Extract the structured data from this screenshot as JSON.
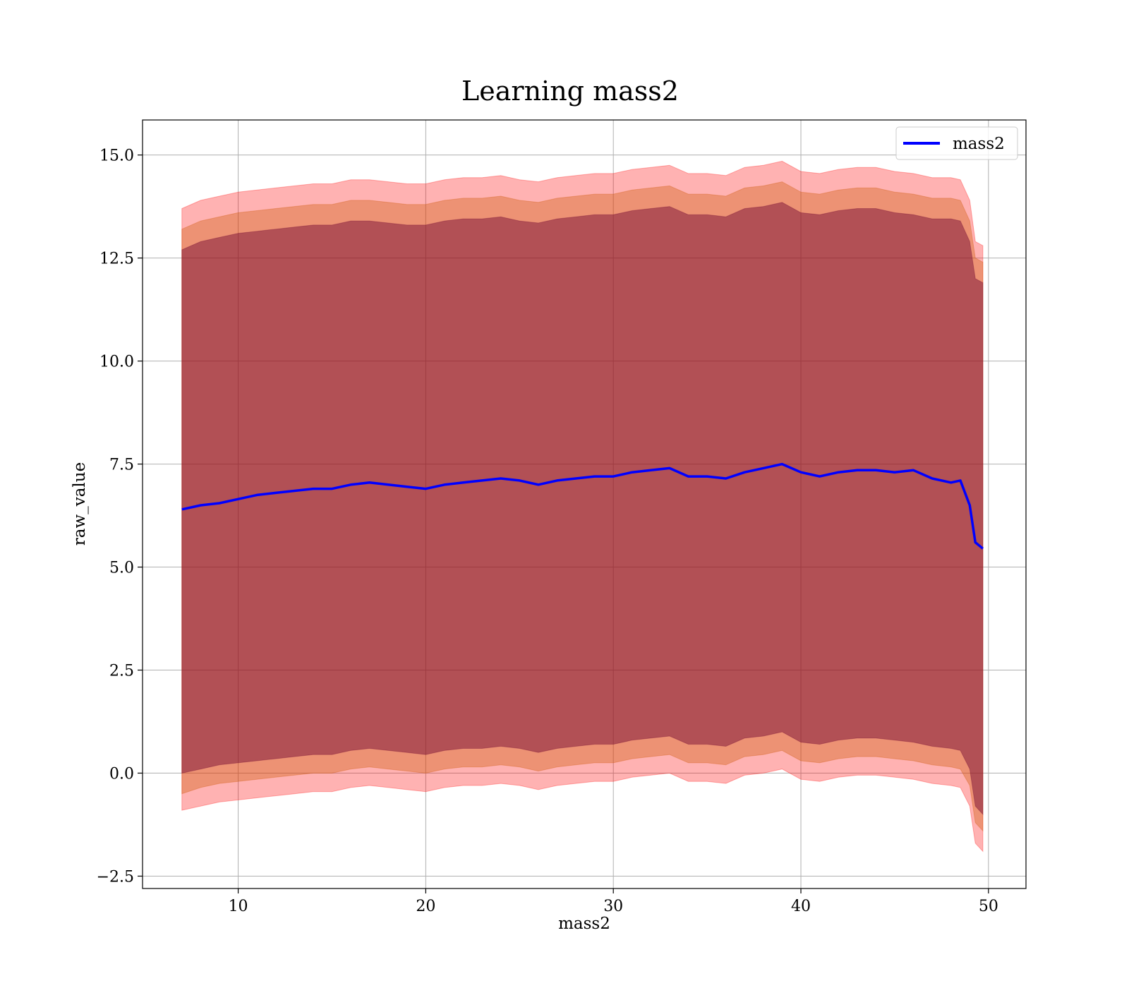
{
  "chart_data": {
    "type": "line",
    "title": "Learning mass2",
    "xlabel": "mass2",
    "ylabel": "raw_value",
    "xlim": [
      4.9,
      52.0
    ],
    "ylim": [
      -2.8,
      15.85
    ],
    "xticks": [
      10,
      20,
      30,
      40,
      50
    ],
    "xtick_labels": [
      "10",
      "20",
      "30",
      "40",
      "50"
    ],
    "yticks": [
      -2.5,
      0.0,
      2.5,
      5.0,
      7.5,
      10.0,
      12.5,
      15.0
    ],
    "ytick_labels": [
      "−2.5",
      "0.0",
      "2.5",
      "5.0",
      "7.5",
      "10.0",
      "12.5",
      "15.0"
    ],
    "grid": true,
    "legend_position": "top-right",
    "legend": [
      "mass2"
    ],
    "colors": {
      "line": "#0000ff",
      "band_outer": "#ff0000",
      "band_middle": "#cc5500",
      "band_inner": "#6a0030",
      "grid": "#b0b0b0"
    },
    "series": [
      {
        "name": "mass2",
        "x": [
          7.0,
          8.0,
          9.0,
          10.0,
          11.0,
          12.0,
          13.0,
          14.0,
          15.0,
          16.0,
          17.0,
          18.0,
          19.0,
          20.0,
          21.0,
          22.0,
          23.0,
          24.0,
          25.0,
          26.0,
          27.0,
          28.0,
          29.0,
          30.0,
          31.0,
          32.0,
          33.0,
          34.0,
          35.0,
          36.0,
          37.0,
          38.0,
          39.0,
          40.0,
          41.0,
          42.0,
          43.0,
          44.0,
          45.0,
          46.0,
          47.0,
          48.0,
          48.5,
          49.0,
          49.3,
          49.7
        ],
        "y": [
          6.4,
          6.5,
          6.55,
          6.65,
          6.75,
          6.8,
          6.85,
          6.9,
          6.9,
          7.0,
          7.05,
          7.0,
          6.95,
          6.9,
          7.0,
          7.05,
          7.1,
          7.15,
          7.1,
          7.0,
          7.1,
          7.15,
          7.2,
          7.2,
          7.3,
          7.35,
          7.4,
          7.2,
          7.2,
          7.15,
          7.3,
          7.4,
          7.5,
          7.3,
          7.2,
          7.3,
          7.35,
          7.35,
          7.3,
          7.35,
          7.15,
          7.05,
          7.1,
          6.5,
          5.6,
          5.45
        ],
        "band_outer_upper": [
          13.7,
          13.9,
          14.0,
          14.1,
          14.15,
          14.2,
          14.25,
          14.3,
          14.3,
          14.4,
          14.4,
          14.35,
          14.3,
          14.3,
          14.4,
          14.45,
          14.45,
          14.5,
          14.4,
          14.35,
          14.45,
          14.5,
          14.55,
          14.55,
          14.65,
          14.7,
          14.75,
          14.55,
          14.55,
          14.5,
          14.7,
          14.75,
          14.85,
          14.6,
          14.55,
          14.65,
          14.7,
          14.7,
          14.6,
          14.55,
          14.45,
          14.45,
          14.4,
          13.9,
          12.9,
          12.8
        ],
        "band_outer_lower": [
          -0.9,
          -0.8,
          -0.7,
          -0.65,
          -0.6,
          -0.55,
          -0.5,
          -0.45,
          -0.45,
          -0.35,
          -0.3,
          -0.35,
          -0.4,
          -0.45,
          -0.35,
          -0.3,
          -0.3,
          -0.25,
          -0.3,
          -0.4,
          -0.3,
          -0.25,
          -0.2,
          -0.2,
          -0.1,
          -0.05,
          0.0,
          -0.2,
          -0.2,
          -0.25,
          -0.05,
          0.0,
          0.1,
          -0.15,
          -0.2,
          -0.1,
          -0.05,
          -0.05,
          -0.1,
          -0.15,
          -0.25,
          -0.3,
          -0.35,
          -0.8,
          -1.7,
          -1.9
        ],
        "band_middle_upper": [
          13.2,
          13.4,
          13.5,
          13.6,
          13.65,
          13.7,
          13.75,
          13.8,
          13.8,
          13.9,
          13.9,
          13.85,
          13.8,
          13.8,
          13.9,
          13.95,
          13.95,
          14.0,
          13.9,
          13.85,
          13.95,
          14.0,
          14.05,
          14.05,
          14.15,
          14.2,
          14.25,
          14.05,
          14.05,
          14.0,
          14.2,
          14.25,
          14.35,
          14.1,
          14.05,
          14.15,
          14.2,
          14.2,
          14.1,
          14.05,
          13.95,
          13.95,
          13.9,
          13.4,
          12.5,
          12.4
        ],
        "band_middle_lower": [
          -0.5,
          -0.35,
          -0.25,
          -0.2,
          -0.15,
          -0.1,
          -0.05,
          0.0,
          0.0,
          0.1,
          0.15,
          0.1,
          0.05,
          0.0,
          0.1,
          0.15,
          0.15,
          0.2,
          0.15,
          0.05,
          0.15,
          0.2,
          0.25,
          0.25,
          0.35,
          0.4,
          0.45,
          0.25,
          0.25,
          0.2,
          0.4,
          0.45,
          0.55,
          0.3,
          0.25,
          0.35,
          0.4,
          0.4,
          0.35,
          0.3,
          0.2,
          0.15,
          0.1,
          -0.3,
          -1.2,
          -1.4
        ],
        "band_inner_upper": [
          12.7,
          12.9,
          13.0,
          13.1,
          13.15,
          13.2,
          13.25,
          13.3,
          13.3,
          13.4,
          13.4,
          13.35,
          13.3,
          13.3,
          13.4,
          13.45,
          13.45,
          13.5,
          13.4,
          13.35,
          13.45,
          13.5,
          13.55,
          13.55,
          13.65,
          13.7,
          13.75,
          13.55,
          13.55,
          13.5,
          13.7,
          13.75,
          13.85,
          13.6,
          13.55,
          13.65,
          13.7,
          13.7,
          13.6,
          13.55,
          13.45,
          13.45,
          13.4,
          12.9,
          12.0,
          11.9
        ],
        "band_inner_lower": [
          0.0,
          0.1,
          0.2,
          0.25,
          0.3,
          0.35,
          0.4,
          0.45,
          0.45,
          0.55,
          0.6,
          0.55,
          0.5,
          0.45,
          0.55,
          0.6,
          0.6,
          0.65,
          0.6,
          0.5,
          0.6,
          0.65,
          0.7,
          0.7,
          0.8,
          0.85,
          0.9,
          0.7,
          0.7,
          0.65,
          0.85,
          0.9,
          1.0,
          0.75,
          0.7,
          0.8,
          0.85,
          0.85,
          0.8,
          0.75,
          0.65,
          0.6,
          0.55,
          0.1,
          -0.8,
          -1.0
        ]
      }
    ]
  }
}
